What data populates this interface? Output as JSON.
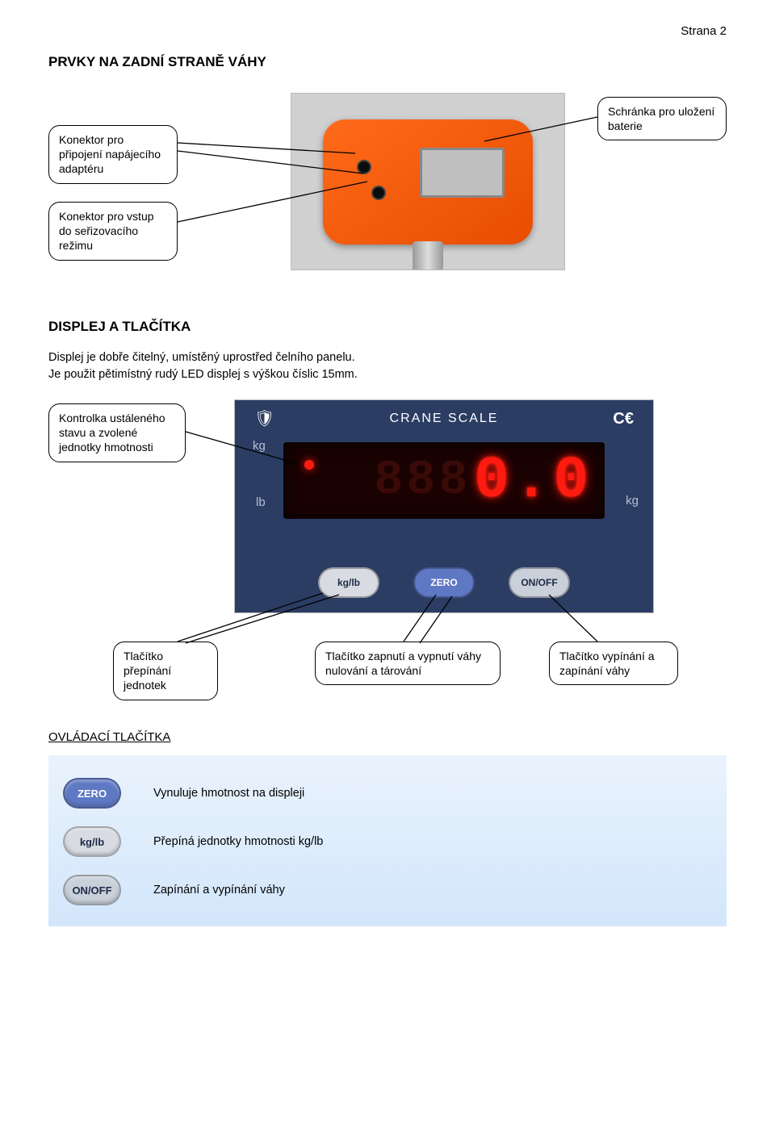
{
  "page_number": "Strana 2",
  "section1": {
    "title": "PRVKY NA ZADNÍ STRANĚ VÁHY",
    "callout_connector": "Konektor pro připojení napájecího adaptéru",
    "callout_mode": "Konektor pro vstup do seřizovacího režimu",
    "callout_battery": "Schránka pro uložení baterie",
    "device_color": "#f05a13",
    "plate_color": "#bfbfbf"
  },
  "section2": {
    "title": "DISPLEJ  A TLAČÍTKA",
    "body": "Displej je dobře čitelný, umístěný uprostřed čelního panelu.\nJe použit pětimístný rudý LED displej s výškou číslic 15mm.",
    "callout_indicator": "Kontrolka ustáleného stavu a zvolené jednotky hmotnosti",
    "callout_units_btn": "Tlačítko přepínání jednotek",
    "callout_zero_btn": "Tlačítko zapnutí a vypnutí váhy\nnulování a tárování",
    "callout_onoff_btn": "Tlačítko vypínání a zapínání váhy",
    "display": {
      "brand": "CRANE SCALE",
      "ce_mark": "C€",
      "shield_glyph": "🛡",
      "reading_dim": "888",
      "reading_bright": "0.0",
      "kg_label": "kg",
      "lb_label": "lb",
      "kg_right": "kg",
      "panel_bg": "#2b3d63",
      "lcd_bg": "#1a0202",
      "digit_color": "#ff1b0f",
      "buttons": {
        "kglb": {
          "label": "kg/lb",
          "bg": "#d9dbe2"
        },
        "zero": {
          "label": "ZERO",
          "bg": "#5f78c4"
        },
        "onoff": {
          "label": "ON/OFF",
          "bg": "#c9d0da"
        }
      }
    }
  },
  "controls": {
    "heading": "OVLÁDACÍ TLAČÍTKA",
    "panel_bg_top": "#eaf3fd",
    "panel_bg_bottom": "#d2e6fb",
    "rows": [
      {
        "btn_label": "ZERO",
        "btn_bg": "#5f78c4",
        "btn_fg": "#ffffff",
        "text": "Vynuluje hmotnost na displeji"
      },
      {
        "btn_label": "kg/lb",
        "btn_bg": "#d9dbe2",
        "btn_fg": "#1c2a47",
        "text": "Přepíná jednotky hmotnosti kg/lb"
      },
      {
        "btn_label": "ON/OFF",
        "btn_bg": "#c9d0da",
        "btn_fg": "#1c2a47",
        "text": "Zapínání a vypínání váhy"
      }
    ]
  }
}
